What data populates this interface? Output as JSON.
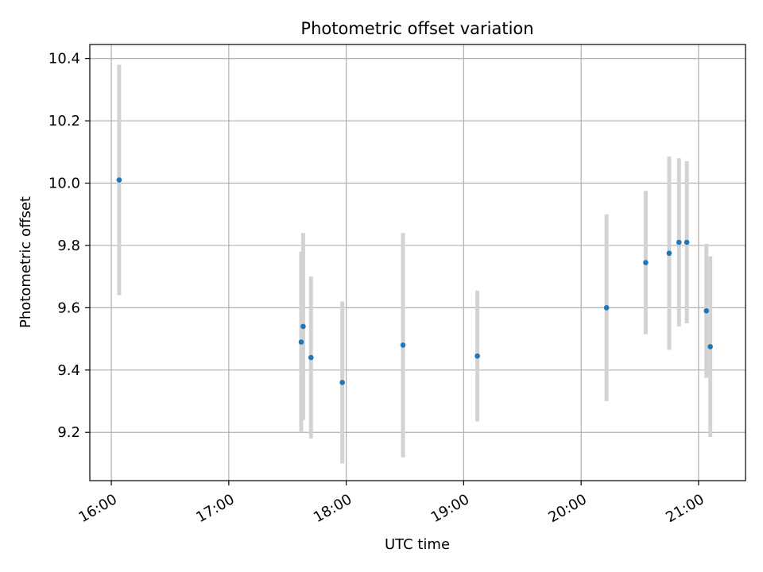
{
  "chart_data": {
    "type": "scatter",
    "title": "Photometric offset variation",
    "xlabel": "UTC time",
    "ylabel": "Photometric offset",
    "xlim": [
      "15:49",
      "21:24"
    ],
    "ylim": [
      9.045,
      10.445
    ],
    "x_ticks": [
      "16:00",
      "17:00",
      "18:00",
      "19:00",
      "20:00",
      "21:00"
    ],
    "y_ticks": [
      "9.2",
      "9.4",
      "9.6",
      "9.8",
      "10.0",
      "10.2",
      "10.4"
    ],
    "grid": true,
    "errorbar_color": "#d3d3d3",
    "marker_color": "#1f77b4",
    "points": [
      {
        "x": "16:04",
        "y": 10.01,
        "yerr": 0.37
      },
      {
        "x": "17:37",
        "y": 9.49,
        "yerr": 0.29
      },
      {
        "x": "17:38",
        "y": 9.54,
        "yerr": 0.3
      },
      {
        "x": "17:42",
        "y": 9.44,
        "yerr": 0.26
      },
      {
        "x": "17:58",
        "y": 9.36,
        "yerr": 0.26
      },
      {
        "x": "18:29",
        "y": 9.48,
        "yerr": 0.36
      },
      {
        "x": "19:07",
        "y": 9.445,
        "yerr": 0.21
      },
      {
        "x": "20:13",
        "y": 9.6,
        "yerr": 0.3
      },
      {
        "x": "20:33",
        "y": 9.745,
        "yerr": 0.23
      },
      {
        "x": "20:45",
        "y": 9.775,
        "yerr": 0.31
      },
      {
        "x": "20:50",
        "y": 9.81,
        "yerr": 0.27
      },
      {
        "x": "20:54",
        "y": 9.81,
        "yerr": 0.26
      },
      {
        "x": "21:04",
        "y": 9.59,
        "yerr": 0.215
      },
      {
        "x": "21:06",
        "y": 9.475,
        "yerr": 0.29
      }
    ]
  }
}
